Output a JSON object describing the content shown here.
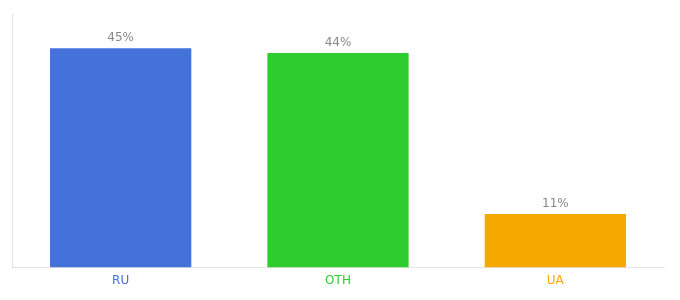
{
  "chart_data": {
    "type": "bar",
    "categories": [
      "RU",
      "OTH",
      "UA"
    ],
    "values": [
      45,
      44,
      11
    ],
    "value_labels": [
      "45%",
      "44%",
      "11%"
    ],
    "colors": [
      "#4472db",
      "#2ecc2e",
      "#f5a800"
    ],
    "ylim": [
      0,
      52
    ],
    "data_labels": true,
    "tick_labels": "x",
    "grid": false
  }
}
